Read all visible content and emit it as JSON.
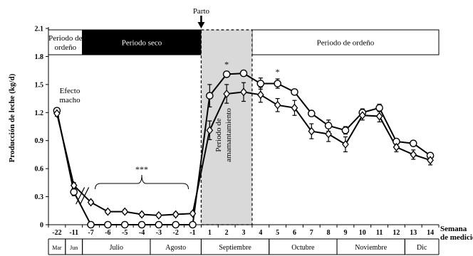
{
  "chart_data": {
    "type": "line",
    "ylabel": "Producción de leche (kg/d)",
    "xlabel": "Semana de medición",
    "ylim": [
      0,
      2.1
    ],
    "yticks": [
      "0",
      "0.3",
      "0.6",
      "0.9",
      "1.2",
      "1.5",
      "1.8",
      "2.1"
    ],
    "categories": [
      "-22",
      "-11",
      "-7",
      "-6",
      "-5",
      "-4",
      "-3",
      "-2",
      "-1",
      "1",
      "2",
      "3",
      "4",
      "5",
      "6",
      "7",
      "8",
      "9",
      "10",
      "11",
      "12",
      "13",
      "14"
    ],
    "series": [
      {
        "marker": "circle",
        "values": [
          1.22,
          0.35,
          0.0,
          0.0,
          0.0,
          0.0,
          0.0,
          0.0,
          0.0,
          1.38,
          1.61,
          1.62,
          1.51,
          1.51,
          1.42,
          1.19,
          1.06,
          1.01,
          1.2,
          1.25,
          0.89,
          0.87,
          0.74
        ],
        "errors": [
          0.03,
          0.04,
          0.0,
          0.0,
          0.0,
          0.0,
          0.0,
          0.0,
          0.0,
          0.12,
          0.03,
          0.03,
          0.06,
          0.05,
          0.03,
          0.03,
          0.06,
          0.04,
          0.04,
          0.04,
          0.03,
          0.03,
          0.03
        ]
      },
      {
        "marker": "diamond",
        "values": [
          1.19,
          0.42,
          0.24,
          0.14,
          0.14,
          0.11,
          0.1,
          0.11,
          0.12,
          1.01,
          1.4,
          1.42,
          1.39,
          1.28,
          1.25,
          1.0,
          0.97,
          0.86,
          1.17,
          1.16,
          0.83,
          0.75,
          0.69
        ],
        "errors": [
          0.03,
          0.03,
          0.02,
          0.02,
          0.02,
          0.02,
          0.02,
          0.02,
          0.02,
          0.1,
          0.1,
          0.1,
          0.08,
          0.07,
          0.08,
          0.08,
          0.08,
          0.08,
          0.05,
          0.06,
          0.05,
          0.05,
          0.05
        ]
      }
    ],
    "significance": [
      {
        "label": "*",
        "category": "2"
      },
      {
        "label": "*",
        "category": "5"
      },
      {
        "label": "***",
        "from": "-7",
        "to": "-1"
      }
    ],
    "annotations": {
      "efecto_macho": [
        "Efecto",
        "macho"
      ],
      "parto": "Parto",
      "amamantamiento": [
        "Periodo de",
        "amamantamiento"
      ]
    },
    "periods": [
      {
        "label": [
          "Periodo de",
          "ordeño"
        ],
        "from": -0.5,
        "to": 1.5,
        "fill": "#ffffff",
        "text_color": "#000000"
      },
      {
        "label": [
          "Periodo seco"
        ],
        "from": 1.5,
        "to": 8.5,
        "fill": "#000000",
        "text_color": "#ffffff"
      },
      {
        "label": [
          "Periodo de ordeño"
        ],
        "from": 11.5,
        "to": 22.5,
        "fill": "#ffffff",
        "text_color": "#000000"
      }
    ],
    "months": [
      {
        "label": "Mar",
        "from": -0.5,
        "to": 0.5
      },
      {
        "label": "Jun",
        "from": 0.5,
        "to": 1.5
      },
      {
        "label": "Julio",
        "from": 1.5,
        "to": 5.5
      },
      {
        "label": "Agosto",
        "from": 5.5,
        "to": 8.5
      },
      {
        "label": "Septiembre",
        "from": 8.5,
        "to": 12.5
      },
      {
        "label": "Octubre",
        "from": 12.5,
        "to": 16.5
      },
      {
        "label": "Noviembre",
        "from": 16.5,
        "to": 20.5
      },
      {
        "label": "Dic",
        "from": 20.5,
        "to": 22.5
      }
    ],
    "grid": false
  }
}
